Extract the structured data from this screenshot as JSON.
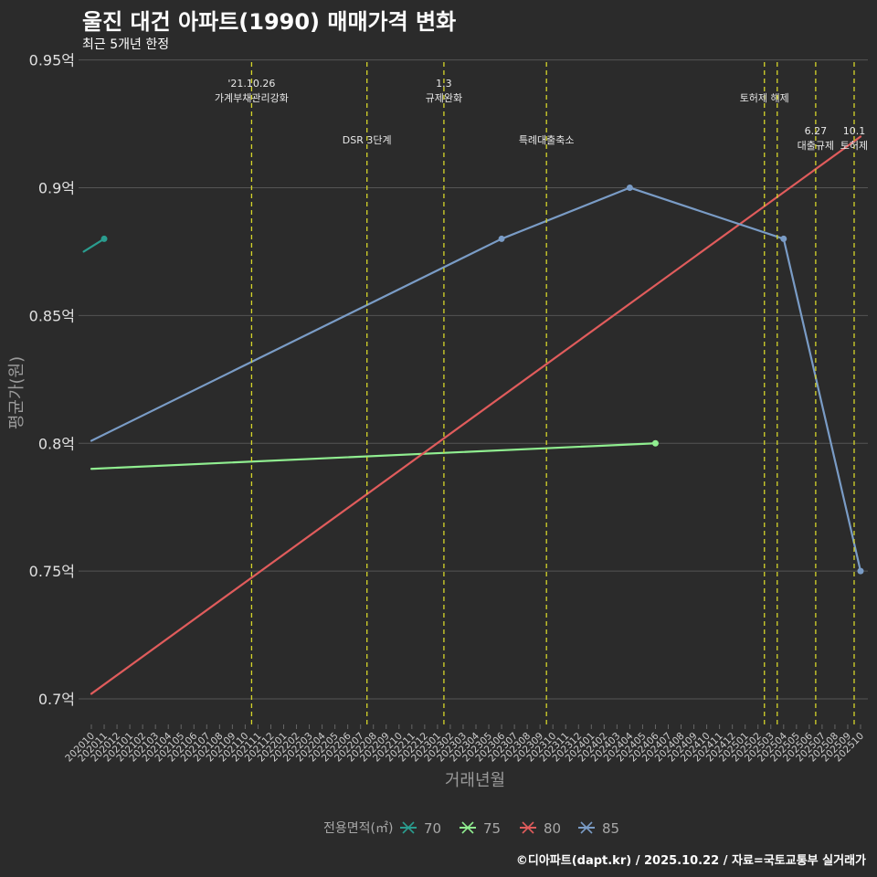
{
  "chart_data": {
    "type": "line",
    "title": "울진 대건 아파트(1990) 매매가격 변화",
    "subtitle": "최근 5개년 한정",
    "xlabel": "거래년월",
    "ylabel": "평균가(원)",
    "caption": "©디아파트(dapt.kr) / 2025.10.22 / 자료=국토교통부 실거래가",
    "categories": [
      "202010",
      "202011",
      "202012",
      "202101",
      "202102",
      "202103",
      "202104",
      "202105",
      "202106",
      "202107",
      "202108",
      "202109",
      "202110",
      "202111",
      "202112",
      "202201",
      "202202",
      "202203",
      "202204",
      "202205",
      "202206",
      "202207",
      "202208",
      "202209",
      "202210",
      "202211",
      "202212",
      "202301",
      "202302",
      "202303",
      "202304",
      "202305",
      "202306",
      "202307",
      "202308",
      "202309",
      "202310",
      "202311",
      "202312",
      "202401",
      "202402",
      "202403",
      "202404",
      "202405",
      "202406",
      "202407",
      "202408",
      "202409",
      "202410",
      "202411",
      "202412",
      "202501",
      "202502",
      "202503",
      "202504",
      "202505",
      "202506",
      "202507",
      "202508",
      "202509",
      "202510"
    ],
    "ylim": [
      0.69,
      0.952
    ],
    "yticks": [
      0.7,
      0.75,
      0.8,
      0.85,
      0.9,
      0.95
    ],
    "ytick_labels": [
      "0.7억",
      "0.75억",
      "0.8억",
      "0.85억",
      "0.9억",
      "0.95억"
    ],
    "legend_title": "전용면적(㎡)",
    "series": [
      {
        "name": "70",
        "color": "#2a9d8f",
        "x": [
          -0.6,
          1
        ],
        "y": [
          0.875,
          0.88
        ],
        "points": [
          1
        ]
      },
      {
        "name": "75",
        "color": "#90ee90",
        "x": [
          0,
          44
        ],
        "y": [
          0.79,
          0.8
        ],
        "points": [
          1
        ]
      },
      {
        "name": "80",
        "color": "#e05c5c",
        "x": [
          0,
          60
        ],
        "y": [
          0.702,
          0.92
        ],
        "points": []
      },
      {
        "name": "85",
        "color": "#7a9cc6",
        "x": [
          0,
          32,
          42,
          54,
          60
        ],
        "y": [
          0.801,
          0.88,
          0.9,
          0.88,
          0.75
        ],
        "points": [
          1,
          2,
          3,
          4
        ]
      }
    ],
    "events": [
      {
        "x": 12.5,
        "label1": "'21.10.26",
        "label2": "가계부채관리강화",
        "level": 0
      },
      {
        "x": 21.5,
        "label1": "",
        "label2": "DSR 3단계",
        "level": 1
      },
      {
        "x": 27.5,
        "label1": "1.3",
        "label2": "규제완화",
        "level": 0
      },
      {
        "x": 35.5,
        "label1": "",
        "label2": "특례대출축소",
        "level": 1
      },
      {
        "x": 52.5,
        "label1": "",
        "label2": "토허제 해제",
        "level": 0
      },
      {
        "x": 53.5,
        "label1": "",
        "label2": "",
        "level": 0
      },
      {
        "x": 56.5,
        "label1": "6.27",
        "label2": "대출규제",
        "level": 2
      },
      {
        "x": 59.5,
        "label1": "10.1",
        "label2": "토허제",
        "level": 2
      }
    ]
  }
}
